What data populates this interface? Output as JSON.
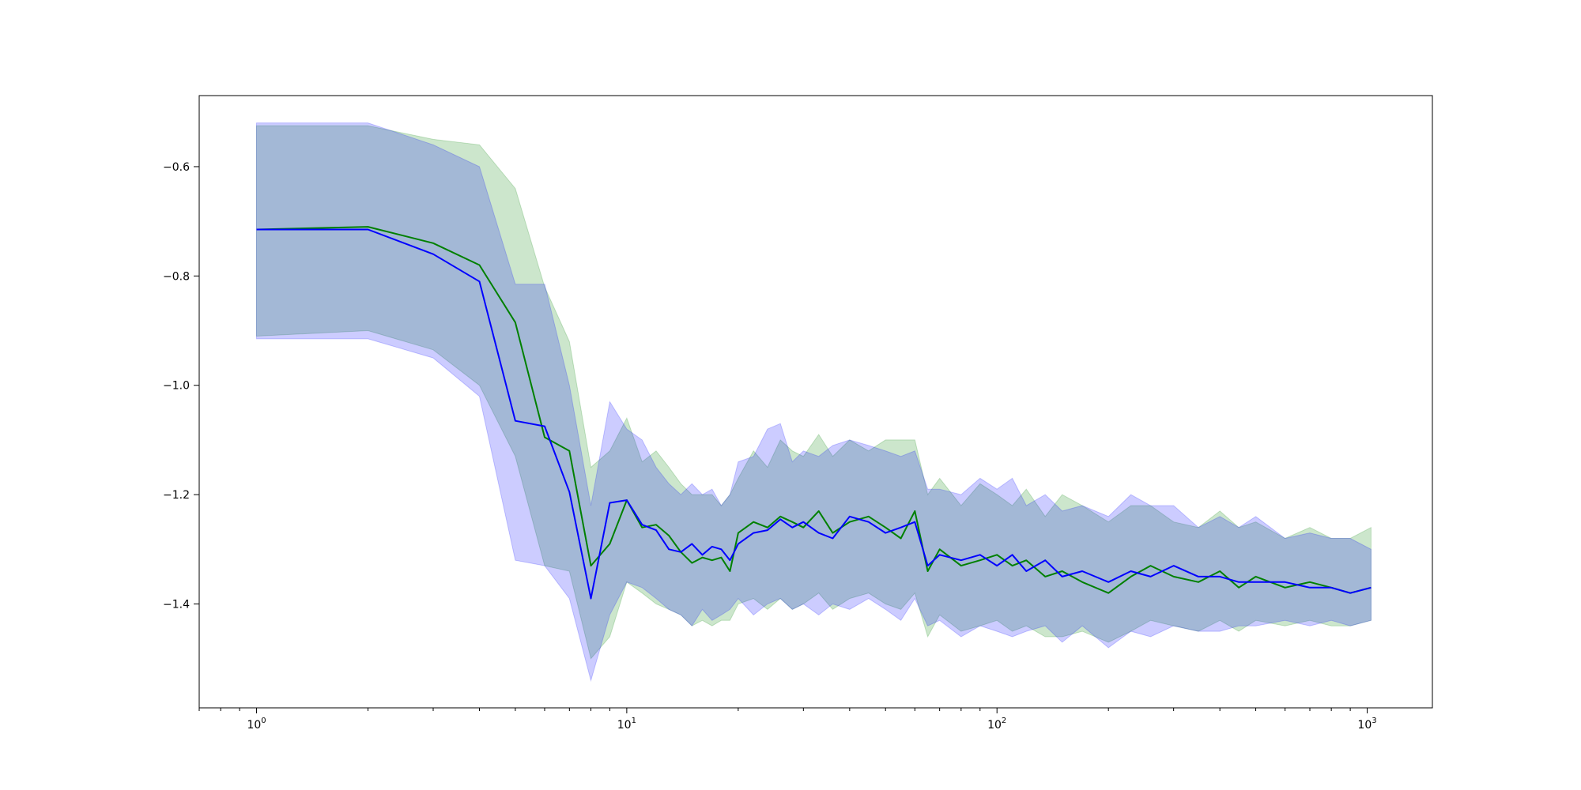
{
  "chart_data": {
    "type": "line",
    "title": "",
    "xlabel": "",
    "ylabel": "",
    "xscale": "log",
    "xlim": [
      0.7,
      1500
    ],
    "ylim": [
      -1.59,
      -0.47
    ],
    "grid": false,
    "legend": "none",
    "x_ticks": [
      {
        "base": "10",
        "exp": "0",
        "value": 1
      },
      {
        "base": "10",
        "exp": "1",
        "value": 10
      },
      {
        "base": "10",
        "exp": "2",
        "value": 100
      },
      {
        "base": "10",
        "exp": "3",
        "value": 1000
      }
    ],
    "y_ticks": [
      {
        "label": "−0.6",
        "value": -0.6
      },
      {
        "label": "−0.8",
        "value": -0.8
      },
      {
        "label": "−1.0",
        "value": -1.0
      },
      {
        "label": "−1.2",
        "value": -1.2
      },
      {
        "label": "−1.4",
        "value": -1.4
      }
    ],
    "series": [
      {
        "color": "#008000",
        "band_color": "#008000",
        "band_opacity": 0.2,
        "x": [
          1,
          2,
          3,
          4,
          5,
          6,
          7,
          8,
          9,
          10,
          11,
          12,
          13,
          14,
          15,
          16,
          17,
          18,
          19,
          20,
          22,
          24,
          26,
          28,
          30,
          33,
          36,
          40,
          45,
          50,
          55,
          60,
          65,
          70,
          80,
          90,
          100,
          110,
          120,
          135,
          150,
          170,
          200,
          230,
          260,
          300,
          350,
          400,
          450,
          500,
          600,
          700,
          800,
          900,
          1024
        ],
        "y": [
          -0.715,
          -0.71,
          -0.74,
          -0.78,
          -0.885,
          -1.095,
          -1.12,
          -1.33,
          -1.29,
          -1.21,
          -1.26,
          -1.255,
          -1.275,
          -1.305,
          -1.325,
          -1.315,
          -1.32,
          -1.315,
          -1.34,
          -1.27,
          -1.25,
          -1.26,
          -1.24,
          -1.25,
          -1.26,
          -1.23,
          -1.27,
          -1.25,
          -1.24,
          -1.26,
          -1.28,
          -1.23,
          -1.34,
          -1.3,
          -1.33,
          -1.32,
          -1.31,
          -1.33,
          -1.32,
          -1.35,
          -1.34,
          -1.36,
          -1.38,
          -1.35,
          -1.33,
          -1.35,
          -1.36,
          -1.34,
          -1.37,
          -1.35,
          -1.37,
          -1.36,
          -1.37,
          -1.38,
          -1.37
        ],
        "upper": [
          -0.525,
          -0.525,
          -0.55,
          -0.56,
          -0.64,
          -0.82,
          -0.92,
          -1.15,
          -1.12,
          -1.06,
          -1.14,
          -1.12,
          -1.15,
          -1.18,
          -1.2,
          -1.2,
          -1.2,
          -1.22,
          -1.2,
          -1.17,
          -1.12,
          -1.15,
          -1.1,
          -1.12,
          -1.13,
          -1.09,
          -1.13,
          -1.1,
          -1.12,
          -1.1,
          -1.1,
          -1.1,
          -1.2,
          -1.17,
          -1.22,
          -1.18,
          -1.2,
          -1.22,
          -1.19,
          -1.24,
          -1.2,
          -1.22,
          -1.25,
          -1.22,
          -1.22,
          -1.25,
          -1.26,
          -1.23,
          -1.26,
          -1.25,
          -1.28,
          -1.26,
          -1.28,
          -1.28,
          -1.26
        ],
        "lower": [
          -0.91,
          -0.9,
          -0.935,
          -1.0,
          -1.13,
          -1.33,
          -1.34,
          -1.5,
          -1.46,
          -1.36,
          -1.38,
          -1.4,
          -1.41,
          -1.42,
          -1.44,
          -1.43,
          -1.44,
          -1.43,
          -1.43,
          -1.4,
          -1.39,
          -1.41,
          -1.39,
          -1.41,
          -1.4,
          -1.38,
          -1.41,
          -1.39,
          -1.38,
          -1.4,
          -1.41,
          -1.38,
          -1.46,
          -1.42,
          -1.45,
          -1.44,
          -1.43,
          -1.45,
          -1.44,
          -1.46,
          -1.46,
          -1.45,
          -1.47,
          -1.45,
          -1.43,
          -1.44,
          -1.45,
          -1.43,
          -1.45,
          -1.43,
          -1.44,
          -1.43,
          -1.44,
          -1.44,
          -1.43
        ]
      },
      {
        "color": "#0000ff",
        "band_color": "#0000ff",
        "band_opacity": 0.2,
        "x": [
          1,
          2,
          3,
          4,
          5,
          6,
          7,
          8,
          9,
          10,
          11,
          12,
          13,
          14,
          15,
          16,
          17,
          18,
          19,
          20,
          22,
          24,
          26,
          28,
          30,
          33,
          36,
          40,
          45,
          50,
          55,
          60,
          65,
          70,
          80,
          90,
          100,
          110,
          120,
          135,
          150,
          170,
          200,
          230,
          260,
          300,
          350,
          400,
          450,
          500,
          600,
          700,
          800,
          900,
          1024
        ],
        "y": [
          -0.715,
          -0.715,
          -0.76,
          -0.81,
          -1.065,
          -1.075,
          -1.195,
          -1.39,
          -1.215,
          -1.21,
          -1.255,
          -1.265,
          -1.3,
          -1.305,
          -1.29,
          -1.31,
          -1.295,
          -1.3,
          -1.32,
          -1.29,
          -1.27,
          -1.265,
          -1.245,
          -1.26,
          -1.25,
          -1.27,
          -1.28,
          -1.24,
          -1.25,
          -1.27,
          -1.26,
          -1.25,
          -1.33,
          -1.31,
          -1.32,
          -1.31,
          -1.33,
          -1.31,
          -1.34,
          -1.32,
          -1.35,
          -1.34,
          -1.36,
          -1.34,
          -1.35,
          -1.33,
          -1.35,
          -1.35,
          -1.36,
          -1.36,
          -1.36,
          -1.37,
          -1.37,
          -1.38,
          -1.37
        ],
        "upper": [
          -0.52,
          -0.52,
          -0.56,
          -0.6,
          -0.815,
          -0.815,
          -1.0,
          -1.22,
          -1.03,
          -1.08,
          -1.1,
          -1.15,
          -1.18,
          -1.2,
          -1.18,
          -1.2,
          -1.19,
          -1.22,
          -1.2,
          -1.14,
          -1.13,
          -1.08,
          -1.07,
          -1.14,
          -1.12,
          -1.13,
          -1.11,
          -1.1,
          -1.11,
          -1.12,
          -1.13,
          -1.12,
          -1.19,
          -1.19,
          -1.2,
          -1.17,
          -1.19,
          -1.17,
          -1.22,
          -1.2,
          -1.23,
          -1.22,
          -1.24,
          -1.2,
          -1.22,
          -1.22,
          -1.26,
          -1.24,
          -1.26,
          -1.24,
          -1.28,
          -1.27,
          -1.28,
          -1.28,
          -1.3
        ],
        "lower": [
          -0.915,
          -0.915,
          -0.95,
          -1.02,
          -1.32,
          -1.33,
          -1.39,
          -1.54,
          -1.42,
          -1.36,
          -1.37,
          -1.39,
          -1.41,
          -1.42,
          -1.44,
          -1.41,
          -1.43,
          -1.42,
          -1.41,
          -1.39,
          -1.42,
          -1.4,
          -1.39,
          -1.41,
          -1.4,
          -1.42,
          -1.4,
          -1.41,
          -1.39,
          -1.41,
          -1.43,
          -1.39,
          -1.44,
          -1.43,
          -1.46,
          -1.44,
          -1.45,
          -1.46,
          -1.45,
          -1.44,
          -1.47,
          -1.44,
          -1.48,
          -1.45,
          -1.46,
          -1.44,
          -1.45,
          -1.45,
          -1.44,
          -1.44,
          -1.43,
          -1.44,
          -1.43,
          -1.44,
          -1.43
        ]
      }
    ]
  }
}
